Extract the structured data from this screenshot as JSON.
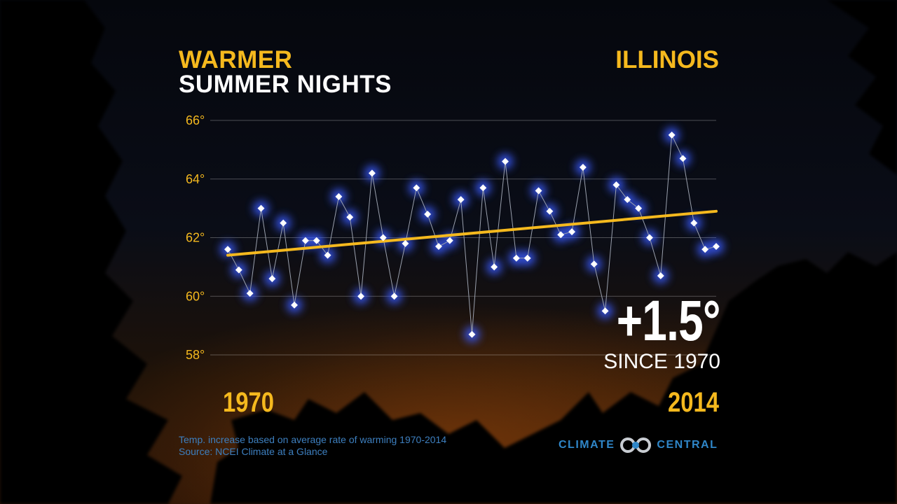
{
  "header": {
    "title_line1": "WARMER",
    "title_line2": "SUMMER NIGHTS",
    "region": "ILLINOIS"
  },
  "highlight": {
    "change": "+1.5°",
    "since": "SINCE 1970"
  },
  "footnotes": {
    "line1": "Temp. increase based on average rate of warming 1970-2014",
    "line2": "Source: NCEI Climate at a Glance"
  },
  "logo": {
    "left_word": "CLIMATE",
    "right_word": "CENTRAL"
  },
  "colors": {
    "accent": "#f5b91e",
    "points": "#3a5cff",
    "trend": "#f5b91e",
    "brand": "#2f86c8"
  },
  "chart_data": {
    "type": "line",
    "title": "WARMER SUMMER NIGHTS",
    "x": [
      1970,
      1971,
      1972,
      1973,
      1974,
      1975,
      1976,
      1977,
      1978,
      1979,
      1980,
      1981,
      1982,
      1983,
      1984,
      1985,
      1986,
      1987,
      1988,
      1989,
      1990,
      1991,
      1992,
      1993,
      1994,
      1995,
      1996,
      1997,
      1998,
      1999,
      2000,
      2001,
      2002,
      2003,
      2004,
      2005,
      2006,
      2007,
      2008,
      2009,
      2010,
      2011,
      2012,
      2013,
      2014
    ],
    "series": [
      {
        "values": [
          61.6,
          60.9,
          60.1,
          63.0,
          60.6,
          62.5,
          59.7,
          61.9,
          61.9,
          61.4,
          63.4,
          62.7,
          60.0,
          64.2,
          62.0,
          60.0,
          61.8,
          63.7,
          62.8,
          61.7,
          61.9,
          63.3,
          58.7,
          63.7,
          61.0,
          64.6,
          61.3,
          61.3,
          63.6,
          62.9,
          62.1,
          62.2,
          64.4,
          61.1,
          59.5,
          63.8,
          63.3,
          63.0,
          62.0,
          60.7,
          65.5,
          64.7,
          62.5,
          61.6,
          61.7
        ]
      }
    ],
    "trend": {
      "x": [
        1970,
        2014
      ],
      "y": [
        61.4,
        62.9
      ]
    },
    "x_tick_labels": [
      "1970",
      "2014"
    ],
    "y_ticks": [
      58,
      60,
      62,
      64,
      66
    ],
    "y_tick_labels": [
      "58°",
      "60°",
      "62°",
      "64°",
      "66°"
    ],
    "ylim": [
      58,
      66
    ],
    "xlim": [
      1970,
      2014
    ],
    "grid": true
  }
}
